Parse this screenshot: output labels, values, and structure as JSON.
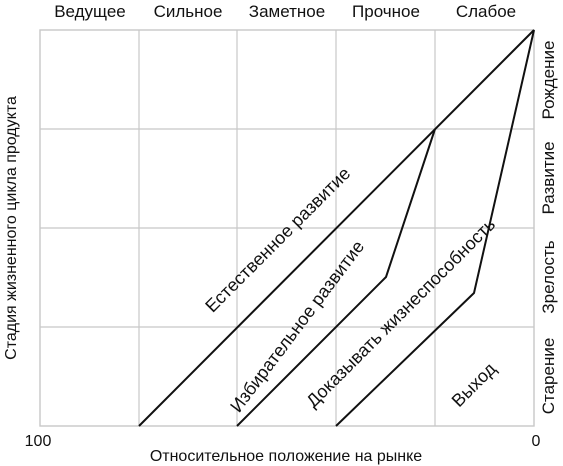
{
  "top_labels": [
    "Ведущее",
    "Сильное",
    "Заметное",
    "Прочное",
    "Слабое"
  ],
  "right_labels": [
    "Рождение",
    "Развитие",
    "Зрелость",
    "Старение"
  ],
  "y_axis_title": "Стадия жизненного цикла продукта",
  "x_axis_title": "Относительное положение на рынке",
  "x_axis_left": "100",
  "x_axis_right": "0",
  "strategies": [
    "Естественное развитие",
    "Избирательное развитие",
    "Доказывать жизнеспособность",
    "Выход"
  ]
}
